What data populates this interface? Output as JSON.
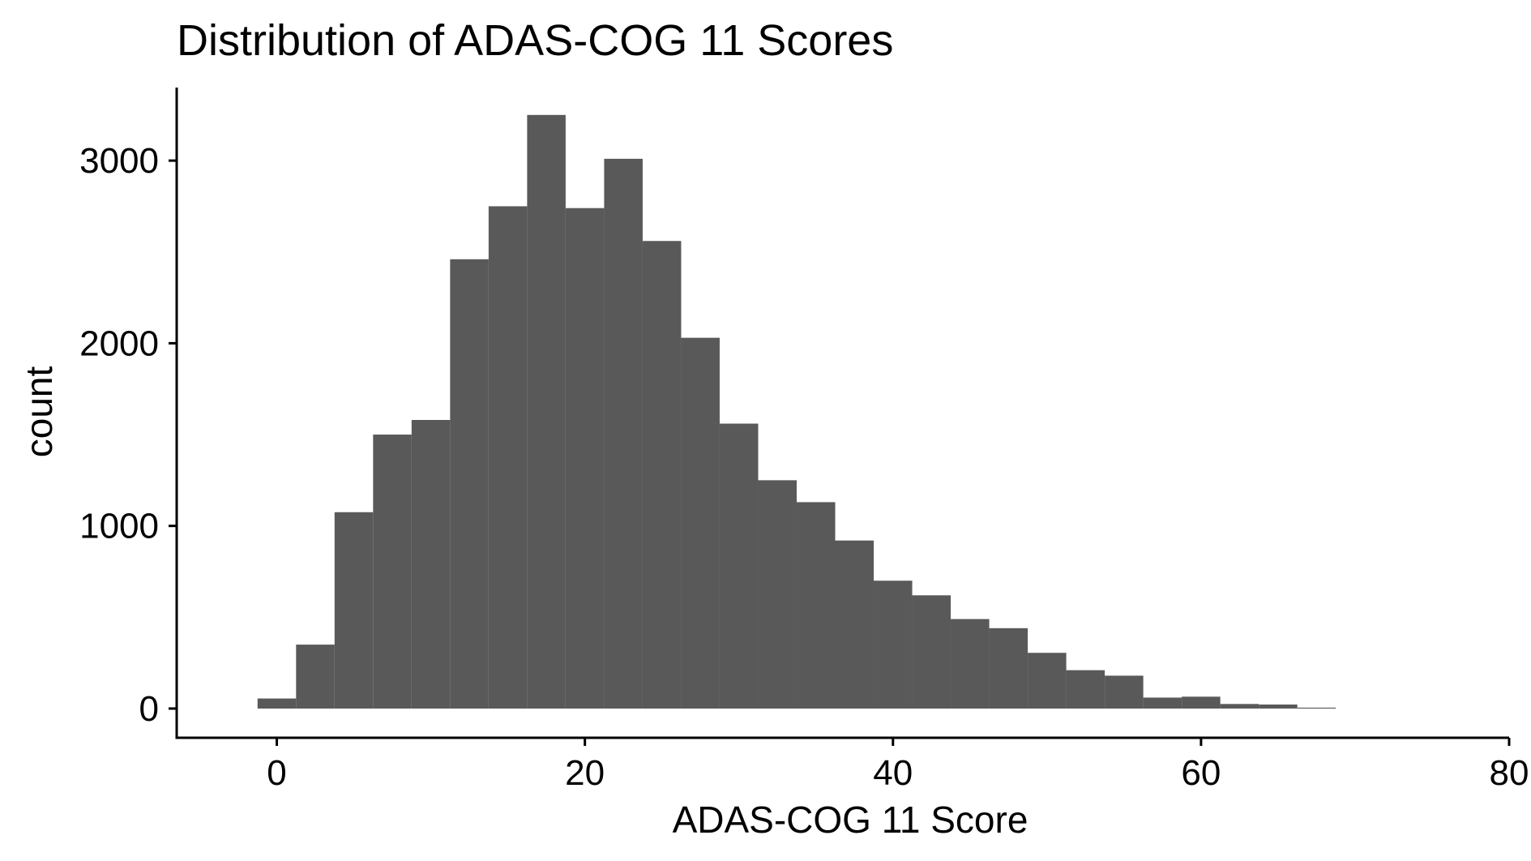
{
  "chart_data": {
    "type": "bar",
    "title": "Distribution of ADAS-COG 11 Scores",
    "xlabel": "ADAS-COG 11 Score",
    "ylabel": "count",
    "bar_color": "#595959",
    "bin_width": 2.5,
    "bins": [
      {
        "x0": -1.25,
        "x1": 1.25,
        "count": 55
      },
      {
        "x0": 1.25,
        "x1": 3.75,
        "count": 350
      },
      {
        "x0": 3.75,
        "x1": 6.25,
        "count": 1075
      },
      {
        "x0": 6.25,
        "x1": 8.75,
        "count": 1500
      },
      {
        "x0": 8.75,
        "x1": 11.25,
        "count": 1580
      },
      {
        "x0": 11.25,
        "x1": 13.75,
        "count": 2460
      },
      {
        "x0": 13.75,
        "x1": 16.25,
        "count": 2750
      },
      {
        "x0": 16.25,
        "x1": 18.75,
        "count": 3250
      },
      {
        "x0": 18.75,
        "x1": 21.25,
        "count": 2740
      },
      {
        "x0": 21.25,
        "x1": 23.75,
        "count": 3010
      },
      {
        "x0": 23.75,
        "x1": 26.25,
        "count": 2560
      },
      {
        "x0": 26.25,
        "x1": 28.75,
        "count": 2030
      },
      {
        "x0": 28.75,
        "x1": 31.25,
        "count": 1560
      },
      {
        "x0": 31.25,
        "x1": 33.75,
        "count": 1250
      },
      {
        "x0": 33.75,
        "x1": 36.25,
        "count": 1130
      },
      {
        "x0": 36.25,
        "x1": 38.75,
        "count": 920
      },
      {
        "x0": 38.75,
        "x1": 41.25,
        "count": 700
      },
      {
        "x0": 41.25,
        "x1": 43.75,
        "count": 620
      },
      {
        "x0": 43.75,
        "x1": 46.25,
        "count": 490
      },
      {
        "x0": 46.25,
        "x1": 48.75,
        "count": 440
      },
      {
        "x0": 48.75,
        "x1": 51.25,
        "count": 305
      },
      {
        "x0": 51.25,
        "x1": 53.75,
        "count": 210
      },
      {
        "x0": 53.75,
        "x1": 56.25,
        "count": 180
      },
      {
        "x0": 56.25,
        "x1": 58.75,
        "count": 60
      },
      {
        "x0": 58.75,
        "x1": 61.25,
        "count": 65
      },
      {
        "x0": 61.25,
        "x1": 63.75,
        "count": 25
      },
      {
        "x0": 63.75,
        "x1": 66.25,
        "count": 22
      },
      {
        "x0": 66.25,
        "x1": 68.75,
        "count": 5
      }
    ],
    "xlim": [
      -6.5,
      80
    ],
    "ylim": [
      -160,
      3400
    ],
    "x_ticks": [
      0,
      20,
      40,
      60,
      80
    ],
    "x_tick_labels": [
      "0",
      "20",
      "40",
      "60",
      "80"
    ],
    "y_ticks": [
      0,
      1000,
      2000,
      3000
    ],
    "y_tick_labels": [
      "0",
      "1000",
      "2000",
      "3000"
    ],
    "grid": false,
    "legend": "none"
  }
}
